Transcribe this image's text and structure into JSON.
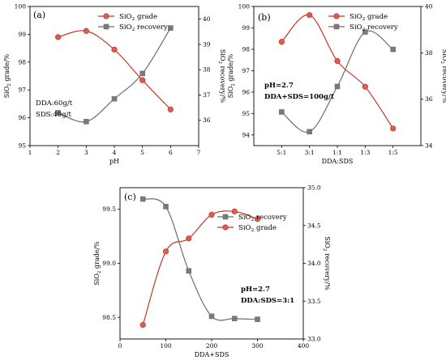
{
  "colors": {
    "grade": "#c0392b",
    "grade_fill": "#d9604e",
    "recovery": "#6e6e6e",
    "recovery_fill": "#7a7a7a"
  },
  "chart_data": [
    {
      "panel": "(a)",
      "type": "line",
      "xlabel": "pH",
      "ylabel_left": "SiO2 grade/%",
      "ylabel_right": "SiO2 recovery/%",
      "x_ticks": [
        "1",
        "2",
        "3",
        "4",
        "5",
        "6",
        "7"
      ],
      "xlim": [
        1,
        7
      ],
      "ylim_left": [
        95,
        100
      ],
      "y_ticks_left": [
        "95",
        "96",
        "97",
        "98",
        "99",
        "100"
      ],
      "ylim_right": [
        35,
        40.5
      ],
      "y_ticks_right": [
        "36",
        "37",
        "38",
        "39",
        "40"
      ],
      "x": [
        2,
        3,
        4,
        5,
        6
      ],
      "series": [
        {
          "name": "SiO2 grade",
          "axis": "left",
          "marker": "circle",
          "values": [
            98.9,
            99.12,
            98.45,
            97.35,
            96.3
          ]
        },
        {
          "name": "SiO2 recovery",
          "axis": "right",
          "marker": "square",
          "values": [
            36.3,
            35.95,
            36.85,
            37.85,
            39.65
          ]
        }
      ],
      "legend": "top-right",
      "annotations": [
        "DDA:60g/t",
        "SDS:40g/t"
      ]
    },
    {
      "panel": "(b)",
      "type": "line",
      "xlabel": "DDA:SDS",
      "ylabel_left": "SiO2 grade/%",
      "ylabel_right": "SiO2 recovery/%",
      "categories": [
        "5:1",
        "3:1",
        "1:1",
        "1:3",
        "1:5"
      ],
      "ylim_left": [
        93.5,
        100
      ],
      "y_ticks_left": [
        "94",
        "95",
        "96",
        "97",
        "98",
        "99",
        "100"
      ],
      "ylim_right": [
        34,
        40
      ],
      "y_ticks_right": [
        "34",
        "36",
        "38",
        "40"
      ],
      "series": [
        {
          "name": "SiO2 grade",
          "axis": "left",
          "marker": "circle",
          "values": [
            98.35,
            99.6,
            97.45,
            96.25,
            94.3
          ]
        },
        {
          "name": "SiO2 recovery",
          "axis": "right",
          "marker": "square",
          "values": [
            35.45,
            34.6,
            36.55,
            38.9,
            38.15
          ]
        }
      ],
      "legend": "top-right",
      "annotations": [
        "pH=2.7",
        "DDA+SDS=100g/t"
      ]
    },
    {
      "panel": "(c)",
      "type": "line",
      "xlabel": "DDA+SDS",
      "ylabel_left": "SiO2 grade/%",
      "ylabel_right": "SiO2 recovery/%",
      "x_ticks": [
        "0",
        "100",
        "200",
        "300",
        "400"
      ],
      "xlim": [
        0,
        400
      ],
      "ylim_left": [
        98.3,
        99.7
      ],
      "y_ticks_left": [
        "98.5",
        "99.0",
        "99.5"
      ],
      "ylim_right": [
        33.0,
        35.0
      ],
      "y_ticks_right": [
        "33.0",
        "33.5",
        "34.0",
        "34.5",
        "35.0"
      ],
      "x": [
        50,
        100,
        150,
        200,
        250,
        300
      ],
      "series": [
        {
          "name": "SiO2 recovery",
          "axis": "right",
          "marker": "square",
          "values": [
            34.85,
            34.75,
            33.9,
            33.3,
            33.27,
            33.26
          ]
        },
        {
          "name": "SiO2 grade",
          "axis": "left",
          "marker": "circle",
          "values": [
            98.43,
            99.11,
            99.23,
            99.45,
            99.48,
            99.41
          ]
        }
      ],
      "legend": "top-right",
      "annotations": [
        "pH=2.7",
        "DDA:SDS=3:1"
      ]
    }
  ]
}
